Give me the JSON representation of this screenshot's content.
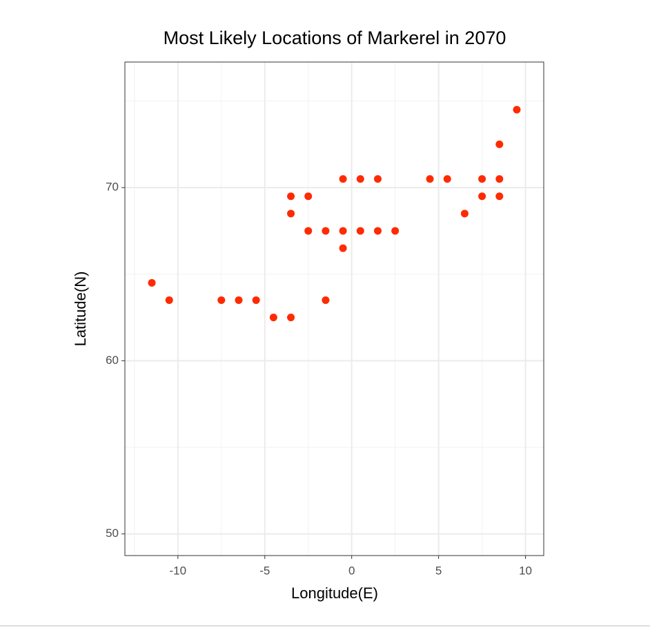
{
  "chart_data": {
    "type": "scatter",
    "title": "Most Likely Locations of Markerel in 2070",
    "x_label": "Longitude(E)",
    "y_label": "Latitude(N)",
    "x": [
      -11.5,
      -10.5,
      -7.5,
      -6.5,
      -5.5,
      -4.5,
      -3.5,
      -1.5,
      -3.5,
      -2.5,
      -3.5,
      -2.5,
      -1.5,
      -0.5,
      0.5,
      1.5,
      2.5,
      -0.5,
      -0.5,
      0.5,
      1.5,
      4.5,
      5.5,
      7.5,
      8.5,
      7.5,
      8.5,
      6.5,
      8.5,
      9.5
    ],
    "y": [
      64.5,
      63.5,
      63.5,
      63.5,
      63.5,
      62.5,
      62.5,
      63.5,
      69.5,
      69.5,
      68.5,
      67.5,
      67.5,
      67.5,
      67.5,
      67.5,
      67.5,
      66.5,
      70.5,
      70.5,
      70.5,
      70.5,
      70.5,
      70.5,
      70.5,
      69.5,
      69.5,
      68.5,
      72.5,
      74.5
    ],
    "color": "#ff2a00",
    "xlim": [
      -13.05,
      11.05
    ],
    "ylim": [
      48.75,
      77.25
    ],
    "xticks": [
      -10,
      -5,
      0,
      5,
      10
    ],
    "yticks": [
      50,
      60,
      70
    ],
    "grid": true
  }
}
